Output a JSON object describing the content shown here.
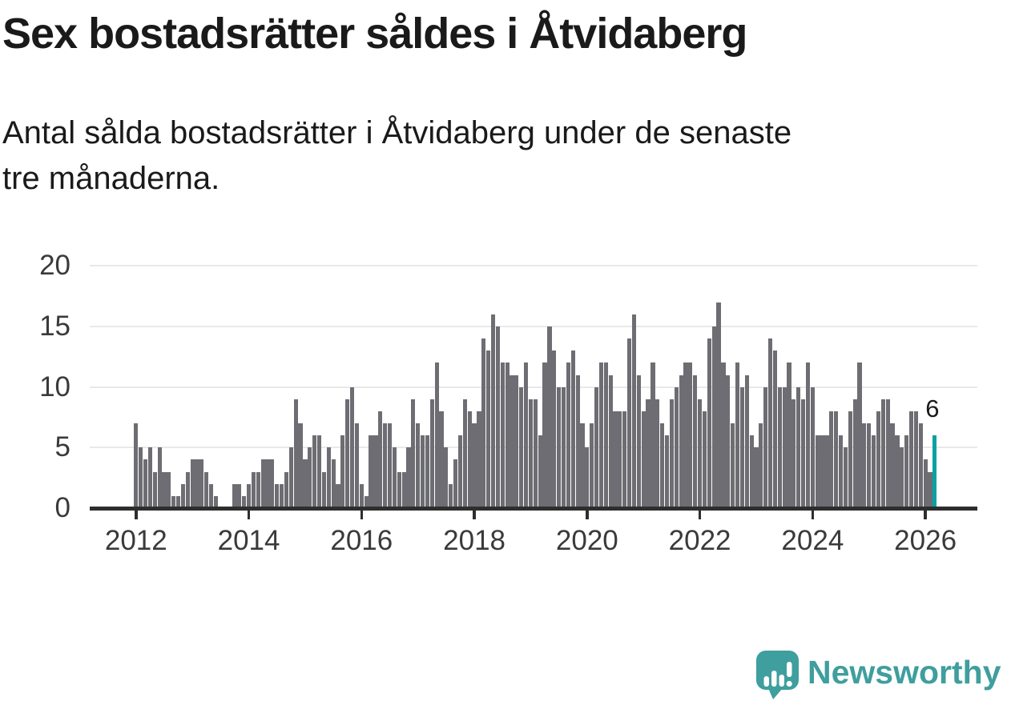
{
  "header": {
    "title": "Sex bostadsrätter såldes i Åtvidaberg",
    "subtitle": "Antal sålda bostadsrätter i Åtvidaberg under de senaste\ntre månaderna."
  },
  "chart_data": {
    "type": "bar",
    "title": "Sex bostadsrätter såldes i Åtvidaberg",
    "description": "Antal sålda bostadsrätter i Åtvidaberg under de senaste tre månaderna.",
    "x_start": "2012-01",
    "x_tick_labels": [
      "2012",
      "2014",
      "2016",
      "2018",
      "2020",
      "2022",
      "2024",
      "2026"
    ],
    "x_tick_every_n_bars": 24,
    "y_tick_labels": [
      "0",
      "5",
      "10",
      "15",
      "20"
    ],
    "y_ticks": [
      0,
      5,
      10,
      15,
      20
    ],
    "ylim": [
      0,
      20
    ],
    "grid": "horizontal",
    "legend": "none",
    "values": [
      7,
      5,
      4,
      5,
      3,
      5,
      3,
      3,
      1,
      1,
      2,
      3,
      4,
      4,
      4,
      3,
      2,
      1,
      0,
      0,
      0,
      2,
      2,
      1,
      2,
      3,
      3,
      4,
      4,
      4,
      2,
      2,
      3,
      5,
      9,
      7,
      4,
      5,
      6,
      6,
      3,
      5,
      4,
      2,
      6,
      9,
      10,
      7,
      2,
      1,
      6,
      6,
      8,
      7,
      7,
      5,
      3,
      3,
      5,
      9,
      7,
      6,
      6,
      9,
      12,
      8,
      5,
      2,
      4,
      6,
      9,
      8,
      7,
      8,
      14,
      13,
      16,
      15,
      12,
      12,
      11,
      11,
      10,
      12,
      9,
      9,
      6,
      12,
      15,
      13,
      10,
      10,
      12,
      13,
      11,
      7,
      5,
      7,
      10,
      12,
      12,
      11,
      8,
      8,
      8,
      14,
      16,
      11,
      8,
      9,
      12,
      9,
      7,
      6,
      9,
      10,
      11,
      12,
      12,
      11,
      9,
      8,
      14,
      15,
      17,
      12,
      11,
      7,
      12,
      10,
      11,
      6,
      5,
      7,
      10,
      14,
      13,
      10,
      10,
      12,
      9,
      10,
      9,
      12,
      10,
      6,
      6,
      6,
      8,
      8,
      6,
      5,
      8,
      9,
      12,
      7,
      7,
      6,
      8,
      9,
      9,
      7,
      6,
      5,
      6,
      8,
      8,
      7,
      4,
      3,
      6
    ],
    "highlight_last_bar": true,
    "last_value_label": "6",
    "colors": {
      "bar": "#6d6d73",
      "highlight": "#0aa1a1",
      "grid": "#e9e9e9",
      "axis": "#2e2e2e",
      "tick_label": "#3a3a3a",
      "value_label": "#1a1a1a"
    }
  },
  "footer": {
    "brand": "Newsworthy",
    "logo_teal": "#3f9e9e"
  }
}
